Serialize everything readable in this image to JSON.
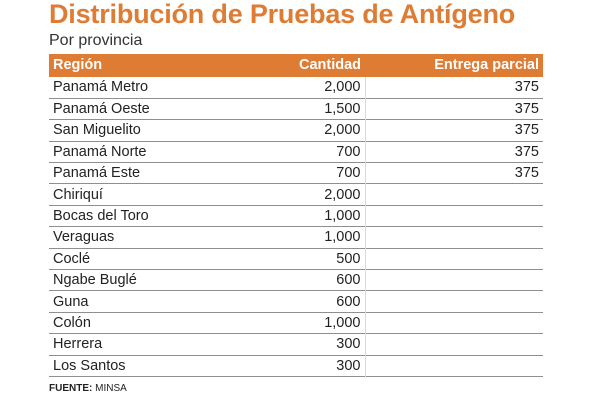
{
  "title": "Distribución de Pruebas de Antígeno",
  "subtitle": "Por provincia",
  "colors": {
    "accent": "#de7c34",
    "header_text": "#ffffff"
  },
  "table": {
    "headers": {
      "region": "Región",
      "quantity": "Cantidad",
      "partial": "Entrega parcial"
    },
    "rows": [
      {
        "region": "Panamá Metro",
        "quantity": "2,000",
        "partial": "375"
      },
      {
        "region": "Panamá Oeste",
        "quantity": "1,500",
        "partial": "375"
      },
      {
        "region": "San Miguelito",
        "quantity": "2,000",
        "partial": "375"
      },
      {
        "region": "Panamá Norte",
        "quantity": "700",
        "partial": "375"
      },
      {
        "region": "Panamá Este",
        "quantity": "700",
        "partial": "375"
      },
      {
        "region": "Chiriquí",
        "quantity": "2,000",
        "partial": ""
      },
      {
        "region": "Bocas del Toro",
        "quantity": "1,000",
        "partial": ""
      },
      {
        "region": "Veraguas",
        "quantity": "1,000",
        "partial": ""
      },
      {
        "region": "Coclé",
        "quantity": "500",
        "partial": ""
      },
      {
        "region": "Ngabe Buglé",
        "quantity": "600",
        "partial": ""
      },
      {
        "region": "Guna",
        "quantity": "600",
        "partial": ""
      },
      {
        "region": "Colón",
        "quantity": "1,000",
        "partial": ""
      },
      {
        "region": "Herrera",
        "quantity": "300",
        "partial": ""
      },
      {
        "region": "Los Santos",
        "quantity": "300",
        "partial": ""
      }
    ]
  },
  "source": {
    "label": "FUENTE:",
    "value": "MINSA"
  }
}
